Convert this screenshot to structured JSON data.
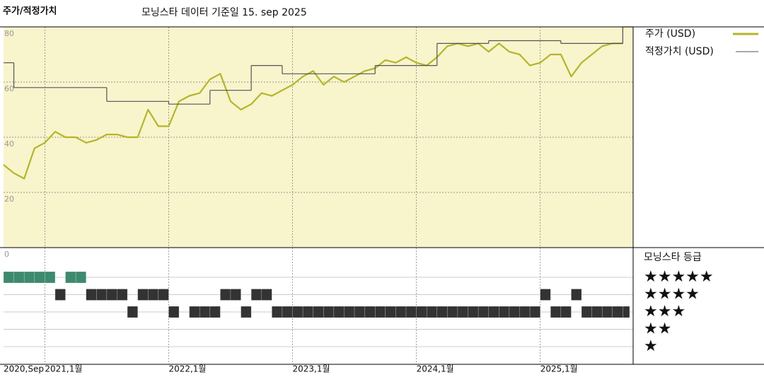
{
  "chart_data": {
    "type": "line",
    "title": "주가/적정가치",
    "subtitle": "모닝스타 데이터 기준일 15. sep 2025",
    "xlim": [
      "2020-09",
      "2025-10"
    ],
    "xticks": [
      {
        "value": "2020-09",
        "label": "2020,Sep"
      },
      {
        "value": "2021-01",
        "label": "2021,1월"
      },
      {
        "value": "2022-01",
        "label": "2022,1월"
      },
      {
        "value": "2023-01",
        "label": "2023,1월"
      },
      {
        "value": "2024-01",
        "label": "2024,1월"
      },
      {
        "value": "2025-01",
        "label": "2025,1월"
      }
    ],
    "ylim": [
      0,
      80
    ],
    "yticks": [
      0,
      20,
      40,
      60,
      80
    ],
    "grid": true,
    "x": [
      "2020-09",
      "2020-10",
      "2020-11",
      "2020-12",
      "2021-01",
      "2021-02",
      "2021-03",
      "2021-04",
      "2021-05",
      "2021-06",
      "2021-07",
      "2021-08",
      "2021-09",
      "2021-10",
      "2021-11",
      "2021-12",
      "2022-01",
      "2022-02",
      "2022-03",
      "2022-04",
      "2022-05",
      "2022-06",
      "2022-07",
      "2022-08",
      "2022-09",
      "2022-10",
      "2022-11",
      "2022-12",
      "2023-01",
      "2023-02",
      "2023-03",
      "2023-04",
      "2023-05",
      "2023-06",
      "2023-07",
      "2023-08",
      "2023-09",
      "2023-10",
      "2023-11",
      "2023-12",
      "2024-01",
      "2024-02",
      "2024-03",
      "2024-04",
      "2024-05",
      "2024-06",
      "2024-07",
      "2024-08",
      "2024-09",
      "2024-10",
      "2024-11",
      "2024-12",
      "2025-01",
      "2025-02",
      "2025-03",
      "2025-04",
      "2025-05",
      "2025-06",
      "2025-07",
      "2025-08",
      "2025-09"
    ],
    "series": [
      {
        "name": "주가 (USD)",
        "color": "#b5b52a",
        "values": [
          30,
          27,
          25,
          36,
          38,
          42,
          40,
          40,
          38,
          39,
          41,
          41,
          40,
          40,
          50,
          44,
          44,
          53,
          55,
          56,
          61,
          63,
          53,
          50,
          52,
          56,
          55,
          57,
          59,
          62,
          64,
          59,
          62,
          60,
          62,
          64,
          65,
          68,
          67,
          69,
          67,
          66,
          69,
          73,
          74,
          73,
          74,
          71,
          74,
          71,
          70,
          66,
          67,
          70,
          70,
          62,
          67,
          70,
          73,
          74,
          74
        ]
      },
      {
        "name": "적정가치 (USD)",
        "color": "#555555",
        "x": [
          "2020-09",
          "2020-10",
          "2021-07",
          "2022-01",
          "2022-05",
          "2022-09",
          "2022-12",
          "2023-09",
          "2024-03",
          "2024-08",
          "2025-03",
          "2025-09"
        ],
        "values": [
          67,
          58,
          53,
          52,
          57,
          66,
          63,
          66,
          74,
          75,
          74,
          80
        ]
      }
    ],
    "ratings": {
      "title": "모닝스타 등급",
      "levels": [
        {
          "value": 5,
          "label": "★★★★★",
          "color": "#3d8a6e"
        },
        {
          "value": 4,
          "label": "★★★★",
          "color": "#333333"
        },
        {
          "value": 3,
          "label": "★★★",
          "color": "#333333"
        },
        {
          "value": 2,
          "label": "★★",
          "color": "#333333"
        },
        {
          "value": 1,
          "label": "★",
          "color": "#333333"
        }
      ],
      "values": [
        5,
        5,
        5,
        5,
        5,
        4,
        5,
        5,
        4,
        4,
        4,
        4,
        3,
        4,
        4,
        4,
        3,
        null,
        3,
        3,
        3,
        4,
        4,
        3,
        4,
        4,
        3,
        3,
        3,
        3,
        3,
        3,
        3,
        3,
        3,
        3,
        3,
        3,
        3,
        3,
        3,
        3,
        3,
        3,
        3,
        3,
        3,
        3,
        3,
        3,
        3,
        3,
        4,
        3,
        3,
        4,
        3,
        3,
        3,
        3,
        3
      ]
    }
  }
}
